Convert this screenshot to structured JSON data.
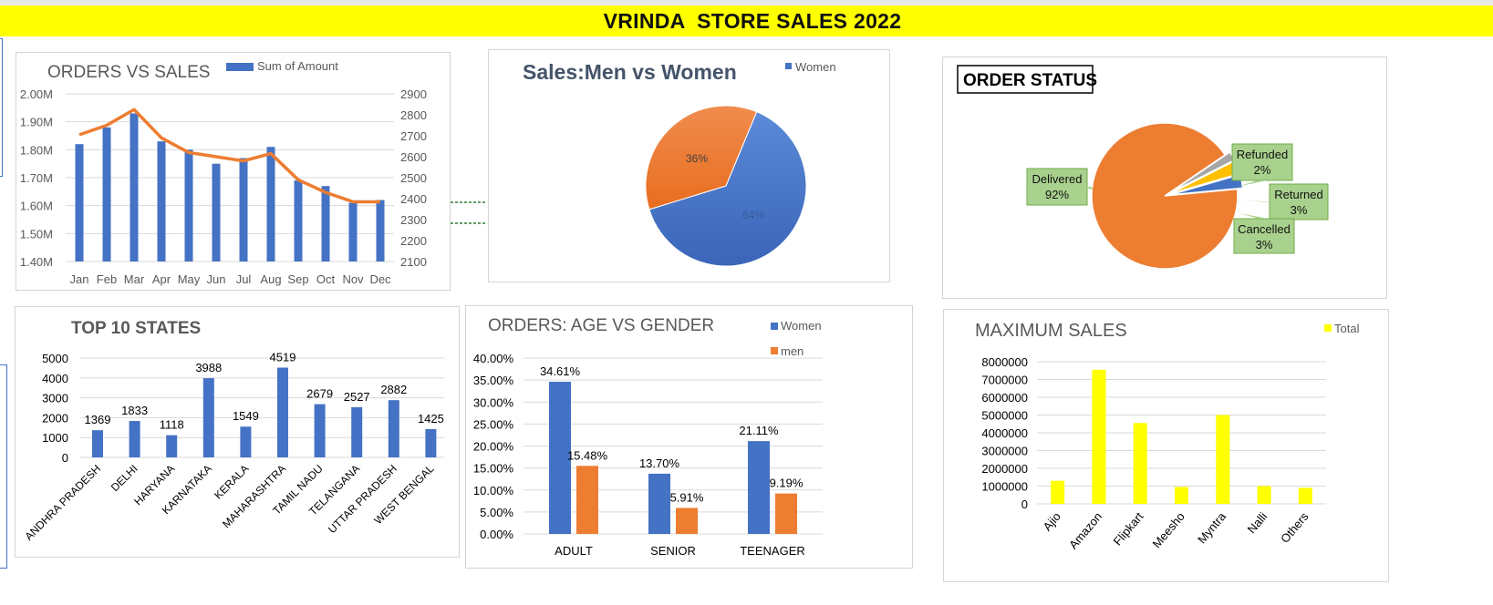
{
  "dashboard": {
    "title": "VRINDA  STORE SALES 2022"
  },
  "colors": {
    "blue": "#4472c4",
    "orange": "#ed7d31",
    "yellow": "#ffff00",
    "gold": "#ffc000",
    "grey": "#a5a5a5",
    "callout": "#a9d18e"
  },
  "chart_data": [
    {
      "id": "orders_vs_sales",
      "type": "bar",
      "title": "ORDERS VS SALES",
      "categories": [
        "Jan",
        "Feb",
        "Mar",
        "Apr",
        "May",
        "Jun",
        "Jul",
        "Aug",
        "Sep",
        "Oct",
        "Nov",
        "Dec"
      ],
      "series": [
        {
          "name": "Sum of Amount",
          "type": "bar",
          "axis": "left",
          "values": [
            1.82,
            1.88,
            1.93,
            1.83,
            1.8,
            1.75,
            1.77,
            1.81,
            1.69,
            1.67,
            1.61,
            1.62
          ]
        },
        {
          "type": "line",
          "axis": "right",
          "values": [
            2705,
            2750,
            2825,
            2690,
            2620,
            2600,
            2580,
            2615,
            2490,
            2430,
            2385,
            2385
          ]
        }
      ],
      "left_axis": {
        "min": 1.4,
        "max": 2.0,
        "step": 0.1,
        "ticks": [
          "1.40M",
          "1.50M",
          "1.60M",
          "1.70M",
          "1.80M",
          "1.90M",
          "2.00M"
        ]
      },
      "right_axis": {
        "min": 2100,
        "max": 2900,
        "step": 100,
        "ticks": [
          "2100",
          "2200",
          "2300",
          "2400",
          "2500",
          "2600",
          "2700",
          "2800",
          "2900"
        ]
      },
      "legend": "top"
    },
    {
      "id": "sales_men_women",
      "type": "pie",
      "title": "Sales:Men vs Women",
      "slices": [
        {
          "label": "64%",
          "value": 64,
          "color": "#4472c4"
        },
        {
          "label": "36%",
          "value": 36,
          "color": "#ed7d31"
        }
      ],
      "legend_entries": [
        "Women"
      ],
      "legend": "top-right"
    },
    {
      "id": "order_status",
      "type": "pie",
      "title": "ORDER STATUS",
      "slices": [
        {
          "name": "Delivered",
          "pct": "92%",
          "value": 92,
          "color": "#ed7d31"
        },
        {
          "name": "Refunded",
          "pct": "2%",
          "value": 2,
          "color": "#a5a5a5"
        },
        {
          "name": "Returned",
          "pct": "3%",
          "value": 3,
          "color": "#ffc000"
        },
        {
          "name": "Cancelled",
          "pct": "3%",
          "value": 3,
          "color": "#4472c4"
        }
      ]
    },
    {
      "id": "top_states",
      "type": "bar",
      "title": "TOP 10 STATES",
      "categories": [
        "ANDHRA PRADESH",
        "DELHI",
        "HARYANA",
        "KARNATAKA",
        "KERALA",
        "MAHARASHTRA",
        "TAMIL NADU",
        "TELANGANA",
        "UTTAR PRADESH",
        "WEST BENGAL"
      ],
      "values": [
        1369,
        1833,
        1118,
        3988,
        1549,
        4519,
        2679,
        2527,
        2882,
        1425
      ],
      "ylim": [
        0,
        5000
      ],
      "yticks": [
        "0",
        "1000",
        "2000",
        "3000",
        "4000",
        "5000"
      ]
    },
    {
      "id": "age_vs_gender",
      "type": "bar",
      "title": "ORDERS: AGE VS GENDER",
      "categories": [
        "ADULT",
        "SENIOR",
        "TEENAGER"
      ],
      "series": [
        {
          "name": "Women",
          "values": [
            34.61,
            13.7,
            21.11
          ],
          "labels": [
            "34.61%",
            "13.70%",
            "21.11%"
          ]
        },
        {
          "name": "men",
          "values": [
            15.48,
            5.91,
            9.19
          ],
          "labels": [
            "15.48%",
            "5.91%",
            "9.19%"
          ]
        }
      ],
      "ylim": [
        0,
        40
      ],
      "yticks": [
        "0.00%",
        "5.00%",
        "10.00%",
        "15.00%",
        "20.00%",
        "25.00%",
        "30.00%",
        "35.00%",
        "40.00%"
      ],
      "legend": "top-right"
    },
    {
      "id": "maximum_sales",
      "type": "bar",
      "title": "MAXIMUM SALES",
      "categories": [
        "Ajio",
        "Amazon",
        "Flipkart",
        "Meesho",
        "Myntra",
        "Nalli",
        "Others"
      ],
      "series": [
        {
          "name": "Total",
          "values": [
            1300000,
            7550000,
            4550000,
            950000,
            5000000,
            1000000,
            900000
          ]
        }
      ],
      "ylim": [
        0,
        8000000
      ],
      "yticks": [
        "0",
        "1000000",
        "2000000",
        "3000000",
        "4000000",
        "5000000",
        "6000000",
        "7000000",
        "8000000"
      ],
      "legend": "top-right"
    }
  ]
}
